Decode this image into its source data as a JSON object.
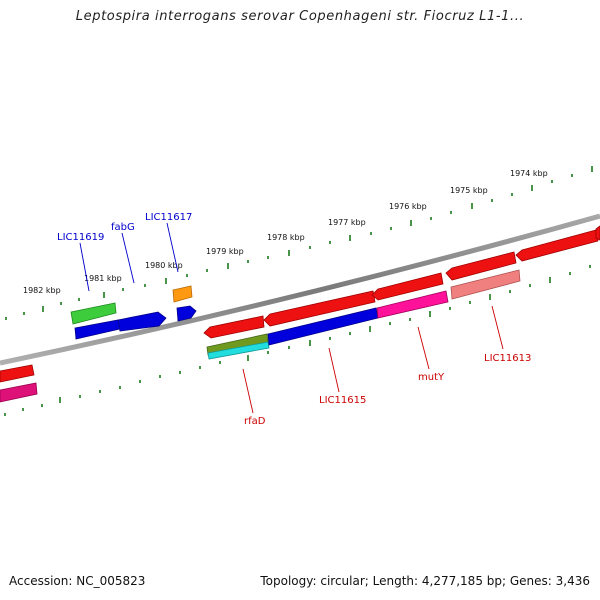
{
  "title": "Leptospira interrogans serovar Copenhageni str. Fiocruz L1-1...",
  "footer": {
    "accession": "Accession: NC_005823",
    "summary": "Topology: circular; Length: 4,277,185 bp; Genes: 3,436"
  },
  "colors": {
    "backbone": "#808080",
    "tick": "#1a7a1a",
    "forward_label": "#0000cc",
    "reverse_label": "#cc0000"
  },
  "kbp_labels": [
    "1982 kbp",
    "1981 kbp",
    "1980 kbp",
    "1979 kbp",
    "1978 kbp",
    "1977 kbp",
    "1976 kbp",
    "1975 kbp",
    "1974 kbp"
  ],
  "gene_labels": {
    "forward": [
      "LIC11619",
      "fabG",
      "LIC11617"
    ],
    "reverse": [
      "rfaD",
      "LIC11615",
      "mutY",
      "LIC11613"
    ]
  }
}
